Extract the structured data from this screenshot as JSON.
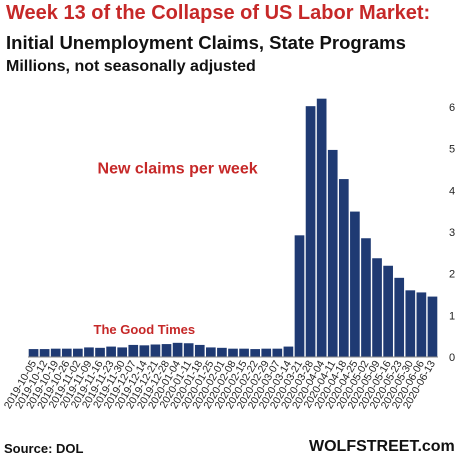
{
  "header": {
    "title": "Week 13 of the Collapse of US Labor Market:",
    "subtitle": "Initial Unemployment Claims, State Programs",
    "units": "Millions, not seasonally adjusted"
  },
  "footer": {
    "source": "Source: DOL",
    "site": "WOLFSTREET.com"
  },
  "colors": {
    "bar": "#1f3a73",
    "title": "#c62828",
    "annotation": "#c62828"
  },
  "chart_data": {
    "type": "bar",
    "categories": [
      "2019-10-05",
      "2019-10-12",
      "2019-10-19",
      "2019-10-26",
      "2019-11-02",
      "2019-11-09",
      "2019-11-16",
      "2019-11-23",
      "2019-11-30",
      "2019-12-07",
      "2019-12-14",
      "2019-12-21",
      "2019-12-28",
      "2020-01-04",
      "2020-01-11",
      "2020-01-18",
      "2020-01-25",
      "2020-02-01",
      "2020-02-08",
      "2020-02-15",
      "2020-02-22",
      "2020-02-29",
      "2020-03-07",
      "2020-03-14",
      "2020-03-21",
      "2020-03-28",
      "2020-04-04",
      "2020-04-11",
      "2020-04-18",
      "2020-04-25",
      "2020-05-02",
      "2020-05-09",
      "2020-05-16",
      "2020-05-23",
      "2020-05-30",
      "2020-06-06",
      "2020-06-13"
    ],
    "values": [
      0.19,
      0.19,
      0.2,
      0.2,
      0.2,
      0.23,
      0.22,
      0.25,
      0.23,
      0.29,
      0.28,
      0.3,
      0.31,
      0.34,
      0.33,
      0.29,
      0.23,
      0.22,
      0.2,
      0.2,
      0.19,
      0.2,
      0.2,
      0.25,
      2.92,
      6.02,
      6.2,
      4.97,
      4.27,
      3.49,
      2.85,
      2.37,
      2.19,
      1.9,
      1.6,
      1.55,
      1.45
    ],
    "ylim": [
      0,
      6.5
    ],
    "yticks": [
      0,
      1,
      2,
      3,
      4,
      5,
      6
    ],
    "y_axis_side": "right",
    "annotations": [
      {
        "text": "New claims per week",
        "x": "2020-01-04",
        "y": 4.4
      },
      {
        "text": "The Good Times",
        "x": "2019-12-14",
        "y": 0.55
      }
    ]
  }
}
